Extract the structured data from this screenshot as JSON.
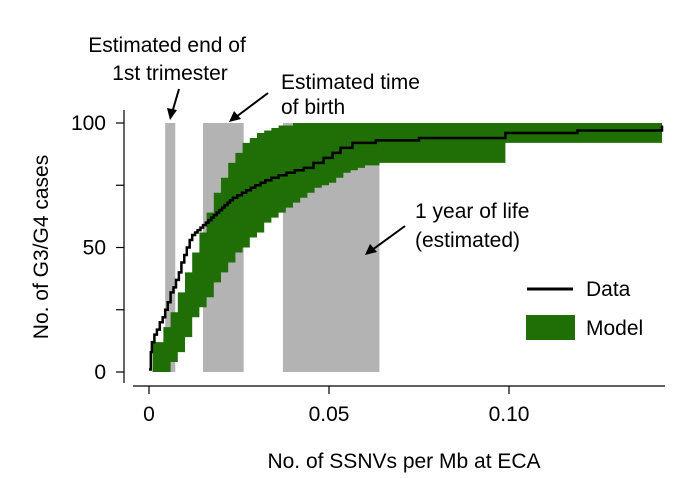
{
  "chart_data": {
    "type": "line",
    "title": "",
    "xlabel": "No. of SSNVs per Mb at ECA",
    "ylabel": "No. of G3/G4 cases",
    "xlim": [
      -0.004,
      0.147
    ],
    "ylim": [
      -3,
      103
    ],
    "x_ticks": [
      0,
      0.05,
      0.1
    ],
    "x_tick_labels": [
      "0",
      "0.05",
      "0.10"
    ],
    "y_ticks": [
      0,
      50,
      100
    ],
    "y_tick_labels": [
      "0",
      "50",
      "100"
    ],
    "y_minor_ticks": [
      25,
      75
    ],
    "grid": false,
    "legend": {
      "placement": "right",
      "entries": [
        {
          "label": "Data",
          "style": "line",
          "color": "#000000"
        },
        {
          "label": "Model",
          "style": "band",
          "color": "#1f6e06"
        }
      ]
    },
    "colors": {
      "data": "#000000",
      "model": "#1f6e06",
      "shading": "#b3b3b3"
    },
    "shaded_regions": [
      {
        "x0": 0.0045,
        "x1": 0.0073
      },
      {
        "x0": 0.015,
        "x1": 0.0263
      },
      {
        "x0": 0.0372,
        "x1": 0.064
      }
    ],
    "series": [
      {
        "name": "Data",
        "type": "step",
        "x": [
          0,
          0.0005,
          0.0008,
          0.0015,
          0.0022,
          0.003,
          0.0038,
          0.0045,
          0.0052,
          0.006,
          0.0068,
          0.0075,
          0.0083,
          0.009,
          0.0098,
          0.0105,
          0.0113,
          0.012,
          0.0128,
          0.0135,
          0.0143,
          0.015,
          0.0158,
          0.0165,
          0.0173,
          0.018,
          0.0188,
          0.0195,
          0.0203,
          0.021,
          0.0218,
          0.0225,
          0.0233,
          0.0245,
          0.0258,
          0.027,
          0.0283,
          0.0295,
          0.031,
          0.0323,
          0.034,
          0.036,
          0.0382,
          0.0405,
          0.043,
          0.0457,
          0.0485,
          0.051,
          0.0532,
          0.0565,
          0.063,
          0.075,
          0.099,
          0.119,
          0.1425
        ],
        "y": [
          1,
          8,
          12,
          15,
          17,
          20,
          22,
          25,
          28,
          32,
          34,
          37,
          40,
          44,
          47,
          50,
          53,
          55,
          56,
          57,
          58,
          59,
          60,
          61,
          62,
          63,
          64,
          65,
          66,
          67,
          68,
          69,
          70,
          71,
          72,
          73,
          74,
          75,
          76,
          77,
          78,
          79,
          80,
          81,
          82,
          84,
          86,
          88,
          90,
          92,
          93,
          94,
          96,
          97,
          99
        ]
      },
      {
        "name": "Model",
        "type": "band",
        "x": [
          0.001,
          0.004,
          0.006,
          0.008,
          0.01,
          0.012,
          0.014,
          0.016,
          0.018,
          0.02,
          0.022,
          0.024,
          0.026,
          0.028,
          0.03,
          0.032,
          0.034,
          0.036,
          0.038,
          0.04,
          0.042,
          0.044,
          0.046,
          0.048,
          0.05,
          0.052,
          0.054,
          0.056,
          0.058,
          0.06,
          0.064,
          0.068,
          0.072,
          0.076,
          0.08,
          0.085,
          0.09,
          0.095,
          0.099,
          0.105,
          0.12,
          0.1425
        ],
        "lower": [
          0,
          0,
          4,
          8,
          14,
          22,
          26,
          30,
          36,
          40,
          44,
          48,
          50,
          54,
          56,
          60,
          62,
          64,
          66,
          68,
          70,
          72,
          74,
          75,
          76,
          78,
          80,
          81,
          82,
          83,
          84,
          84,
          84,
          84,
          84,
          84,
          84,
          84,
          92,
          92,
          92,
          92
        ],
        "upper": [
          12,
          18,
          24,
          32,
          40,
          48,
          56,
          64,
          72,
          78,
          84,
          88,
          92,
          94,
          96,
          97,
          98,
          99,
          99,
          100,
          100,
          100,
          100,
          100,
          100,
          100,
          100,
          100,
          100,
          100,
          100,
          100,
          100,
          100,
          100,
          100,
          100,
          100,
          100,
          100,
          100,
          100
        ]
      }
    ],
    "annotations": [
      {
        "id": "trimester",
        "lines": [
          "Estimated end of",
          "1st trimester"
        ]
      },
      {
        "id": "birth",
        "lines": [
          "Estimated time",
          "of birth"
        ]
      },
      {
        "id": "year",
        "lines": [
          "1 year of life",
          "(estimated)"
        ]
      }
    ]
  }
}
